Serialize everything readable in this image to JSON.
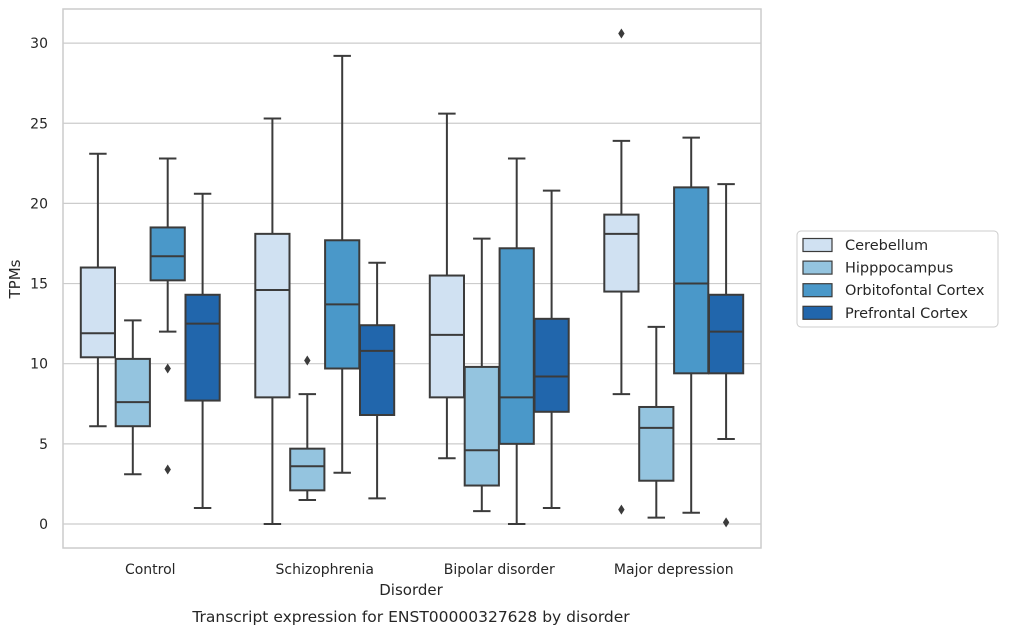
{
  "chart_data": {
    "type": "box",
    "title": "",
    "caption": "Transcript expression for ENST00000327628 by disorder",
    "xlabel": "Disorder",
    "ylabel": "TPMs",
    "ylim": [
      -1.5,
      32.2
    ],
    "yticks": [
      0,
      5,
      10,
      15,
      20,
      25,
      30
    ],
    "grid": "horizontal",
    "legend_position": "right",
    "categories": [
      "Control",
      "Schizophrenia",
      "Bipolar disorder",
      "Major depression"
    ],
    "series": [
      {
        "name": "Cerebellum",
        "color": "#d0e1f2",
        "boxes": [
          {
            "whislo": 6.1,
            "q1": 10.4,
            "med": 11.9,
            "q3": 16.0,
            "whishi": 23.1,
            "fliers": []
          },
          {
            "whislo": 0.0,
            "q1": 7.9,
            "med": 14.6,
            "q3": 18.1,
            "whishi": 25.3,
            "fliers": []
          },
          {
            "whislo": 4.1,
            "q1": 7.9,
            "med": 11.8,
            "q3": 15.5,
            "whishi": 25.6,
            "fliers": []
          },
          {
            "whislo": 8.1,
            "q1": 14.5,
            "med": 18.1,
            "q3": 19.3,
            "whishi": 23.9,
            "fliers": [
              0.9,
              30.6
            ]
          }
        ]
      },
      {
        "name": "Hipppocampus",
        "color": "#94c4df",
        "boxes": [
          {
            "whislo": 3.1,
            "q1": 6.1,
            "med": 7.6,
            "q3": 10.3,
            "whishi": 12.7,
            "fliers": []
          },
          {
            "whislo": 1.5,
            "q1": 2.1,
            "med": 3.6,
            "q3": 4.7,
            "whishi": 8.1,
            "fliers": [
              10.2
            ]
          },
          {
            "whislo": 0.8,
            "q1": 2.4,
            "med": 4.6,
            "q3": 9.8,
            "whishi": 17.8,
            "fliers": []
          },
          {
            "whislo": 0.4,
            "q1": 2.7,
            "med": 6.0,
            "q3": 7.3,
            "whishi": 12.3,
            "fliers": []
          }
        ]
      },
      {
        "name": "Orbitofontal Cortex",
        "color": "#4a98c9",
        "boxes": [
          {
            "whislo": 12.0,
            "q1": 15.2,
            "med": 16.7,
            "q3": 18.5,
            "whishi": 22.8,
            "fliers": [
              9.7,
              3.4
            ]
          },
          {
            "whislo": 3.2,
            "q1": 9.7,
            "med": 13.7,
            "q3": 17.7,
            "whishi": 29.2,
            "fliers": []
          },
          {
            "whislo": 0.0,
            "q1": 5.0,
            "med": 7.9,
            "q3": 17.2,
            "whishi": 22.8,
            "fliers": []
          },
          {
            "whislo": 0.7,
            "q1": 9.4,
            "med": 15.0,
            "q3": 21.0,
            "whishi": 24.1,
            "fliers": []
          }
        ]
      },
      {
        "name": "Prefrontal Cortex",
        "color": "#2166ac",
        "boxes": [
          {
            "whislo": 1.0,
            "q1": 7.7,
            "med": 12.5,
            "q3": 14.3,
            "whishi": 20.6,
            "fliers": []
          },
          {
            "whislo": 1.6,
            "q1": 6.8,
            "med": 10.8,
            "q3": 12.4,
            "whishi": 16.3,
            "fliers": []
          },
          {
            "whislo": 1.0,
            "q1": 7.0,
            "med": 9.2,
            "q3": 12.8,
            "whishi": 20.8,
            "fliers": []
          },
          {
            "whislo": 5.3,
            "q1": 9.4,
            "med": 12.0,
            "q3": 14.3,
            "whishi": 21.2,
            "fliers": [
              0.1
            ]
          }
        ]
      }
    ]
  }
}
